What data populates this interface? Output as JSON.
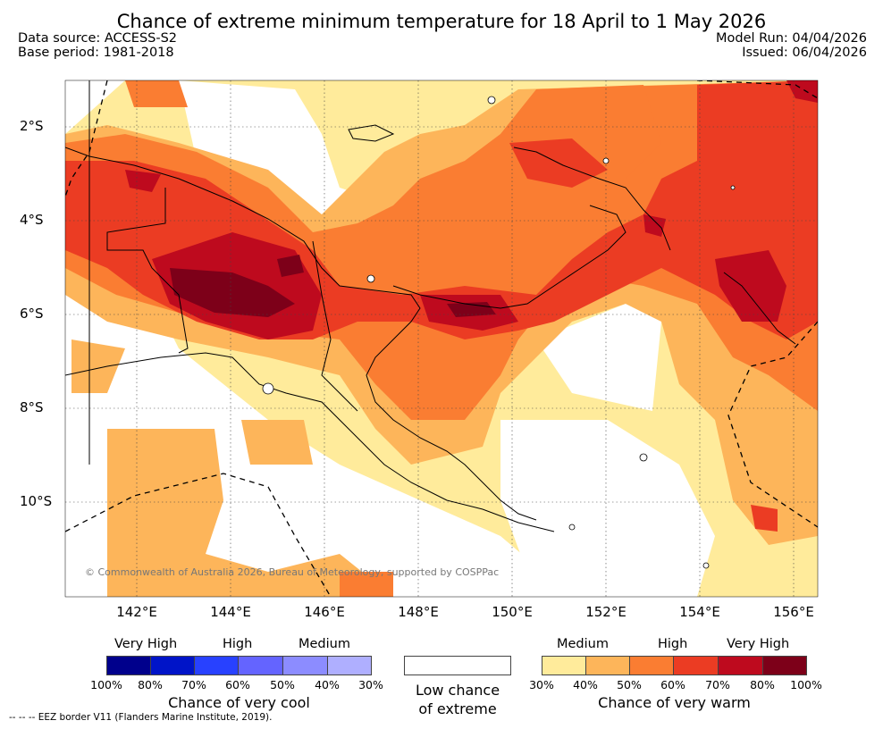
{
  "header": {
    "title": "Chance of extreme minimum temperature for 18 April to 1 May 2026",
    "data_source": "Data source: ACCESS-S2",
    "base_period": "Base period: 1981-2018",
    "model_run": "Model Run: 04/04/2026",
    "issued": "Issued: 06/04/2026"
  },
  "map": {
    "lat_labels": [
      "2°S",
      "4°S",
      "6°S",
      "8°S",
      "10°S"
    ],
    "lon_labels": [
      "142°E",
      "144°E",
      "146°E",
      "148°E",
      "150°E",
      "152°E",
      "154°E",
      "156°E"
    ],
    "copyright": "© Commonwealth of Australia 2026, Bureau of Meteorology, supported by COSPPac"
  },
  "legend": {
    "cool": {
      "levels": [
        "Very High",
        "High",
        "Medium"
      ],
      "ticks": [
        "100%",
        "80%",
        "70%",
        "60%",
        "50%",
        "40%",
        "30%"
      ],
      "colors": [
        "#00008c",
        "#0014c8",
        "#2841ff",
        "#6464ff",
        "#8c8cff",
        "#afafff"
      ],
      "caption": "Chance of very cool"
    },
    "neutral": {
      "caption_line1": "Low chance",
      "caption_line2": "of extreme"
    },
    "warm": {
      "levels": [
        "Medium",
        "High",
        "Very High"
      ],
      "ticks": [
        "30%",
        "40%",
        "50%",
        "60%",
        "70%",
        "80%",
        "100%"
      ],
      "colors": [
        "#ffeb9b",
        "#fdb55a",
        "#fa7d32",
        "#eb3c23",
        "#be0a1e",
        "#7d0019"
      ],
      "caption": "Chance of very warm"
    },
    "footnote": "--  --  -- EEZ border V11 (Flanders Marine Institute, 2019)."
  }
}
